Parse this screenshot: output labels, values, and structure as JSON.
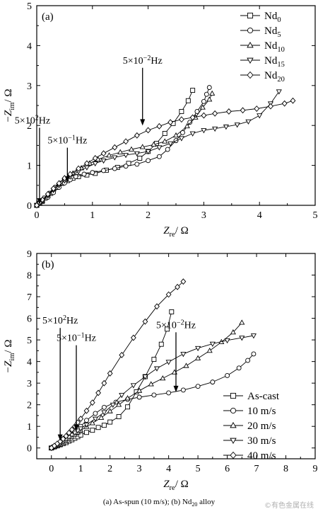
{
  "caption": "(a) As-spun (10 m/s); (b) Nd20 alloy",
  "watermark": "©有色金属在线",
  "chart_data": [
    {
      "type": "line",
      "panel_label": "(a)",
      "xlabel": "Zre/ Ω",
      "ylabel": "−Zim/ Ω",
      "xlim": [
        0,
        5
      ],
      "ylim": [
        0,
        5
      ],
      "xticks": [
        0,
        1,
        2,
        3,
        4,
        5
      ],
      "yticks": [
        0,
        1,
        2,
        3,
        4,
        5
      ],
      "legend": "top-right",
      "series": [
        {
          "name": "Nd0",
          "marker": "square",
          "x": [
            0.0,
            0.05,
            0.1,
            0.15,
            0.25,
            0.35,
            0.45,
            0.55,
            0.65,
            0.75,
            0.9,
            1.05,
            1.25,
            1.45,
            1.65,
            1.85,
            2.0,
            2.15,
            2.3,
            2.45,
            2.6,
            2.72,
            2.8
          ],
          "y": [
            0.0,
            0.05,
            0.1,
            0.18,
            0.3,
            0.45,
            0.55,
            0.62,
            0.68,
            0.72,
            0.76,
            0.8,
            0.88,
            0.95,
            1.05,
            1.18,
            1.35,
            1.55,
            1.8,
            2.05,
            2.35,
            2.62,
            2.88
          ]
        },
        {
          "name": "Nd5",
          "marker": "circle",
          "x": [
            0.0,
            0.05,
            0.1,
            0.2,
            0.3,
            0.4,
            0.5,
            0.6,
            0.7,
            0.85,
            1.0,
            1.2,
            1.4,
            1.6,
            1.8,
            2.0,
            2.2,
            2.35,
            2.5,
            2.62,
            2.75,
            2.88,
            3.0,
            3.05,
            3.1
          ],
          "y": [
            0.0,
            0.05,
            0.1,
            0.2,
            0.32,
            0.45,
            0.56,
            0.64,
            0.72,
            0.78,
            0.82,
            0.87,
            0.92,
            0.98,
            1.03,
            1.12,
            1.22,
            1.4,
            1.62,
            1.82,
            2.08,
            2.35,
            2.6,
            2.78,
            2.95
          ]
        },
        {
          "name": "Nd10",
          "marker": "triangle-up",
          "x": [
            0.0,
            0.05,
            0.1,
            0.2,
            0.3,
            0.4,
            0.5,
            0.65,
            0.8,
            0.95,
            1.1,
            1.3,
            1.5,
            1.7,
            1.9,
            2.1,
            2.3,
            2.5,
            2.7,
            2.85,
            2.98,
            3.1,
            3.15
          ],
          "y": [
            0.0,
            0.06,
            0.12,
            0.25,
            0.4,
            0.55,
            0.68,
            0.8,
            0.93,
            1.05,
            1.15,
            1.25,
            1.33,
            1.4,
            1.46,
            1.52,
            1.6,
            1.75,
            1.98,
            2.2,
            2.45,
            2.65,
            2.8
          ]
        },
        {
          "name": "Nd15",
          "marker": "triangle-down",
          "x": [
            0.0,
            0.05,
            0.1,
            0.2,
            0.3,
            0.4,
            0.5,
            0.6,
            0.75,
            0.9,
            1.05,
            1.2,
            1.4,
            1.6,
            1.8,
            2.0,
            2.2,
            2.4,
            2.6,
            2.8,
            3.0,
            3.2,
            3.4,
            3.6,
            3.8,
            4.0,
            4.2,
            4.35
          ],
          "y": [
            0.0,
            0.06,
            0.12,
            0.24,
            0.38,
            0.5,
            0.62,
            0.72,
            0.85,
            0.95,
            1.05,
            1.12,
            1.2,
            1.26,
            1.3,
            1.35,
            1.45,
            1.55,
            1.68,
            1.8,
            1.88,
            1.92,
            1.97,
            2.02,
            2.1,
            2.25,
            2.55,
            2.85
          ]
        },
        {
          "name": "Nd20",
          "marker": "diamond",
          "x": [
            0.0,
            0.05,
            0.1,
            0.2,
            0.3,
            0.4,
            0.5,
            0.6,
            0.75,
            0.9,
            1.05,
            1.2,
            1.4,
            1.6,
            1.8,
            2.0,
            2.2,
            2.4,
            2.6,
            2.8,
            3.0,
            3.2,
            3.45,
            3.7,
            3.95,
            4.2,
            4.45,
            4.6
          ],
          "y": [
            0.0,
            0.07,
            0.14,
            0.28,
            0.42,
            0.55,
            0.68,
            0.78,
            0.92,
            1.05,
            1.18,
            1.3,
            1.45,
            1.6,
            1.75,
            1.88,
            1.98,
            2.08,
            2.15,
            2.2,
            2.25,
            2.3,
            2.35,
            2.38,
            2.42,
            2.48,
            2.55,
            2.62
          ]
        }
      ],
      "annotations": [
        {
          "text": "5×10−2Hz",
          "x": 1.9,
          "y": 3.55,
          "arrow_to": [
            1.9,
            1.98
          ]
        },
        {
          "text": "5×102Hz",
          "x": 0.05,
          "y": 2.05,
          "arrow_to": [
            0.05,
            0.0
          ]
        },
        {
          "text": "5×10−1Hz",
          "x": 0.55,
          "y": 1.55,
          "arrow_to": [
            0.55,
            0.55
          ]
        }
      ]
    },
    {
      "type": "line",
      "panel_label": "(b)",
      "xlabel": "Zre/ Ω",
      "ylabel": "−Zim/ Ω",
      "xlim": [
        -0.5,
        9
      ],
      "ylim": [
        -0.5,
        9
      ],
      "xticks": [
        0,
        1,
        2,
        3,
        4,
        5,
        6,
        7,
        8,
        9
      ],
      "yticks": [
        0,
        1,
        2,
        3,
        4,
        5,
        6,
        7,
        8,
        9
      ],
      "legend": "bottom-right",
      "series": [
        {
          "name": "As-cast",
          "marker": "square",
          "x": [
            0.0,
            0.1,
            0.2,
            0.3,
            0.4,
            0.5,
            0.6,
            0.7,
            0.8,
            0.9,
            1.0,
            1.2,
            1.4,
            1.6,
            1.8,
            2.0,
            2.3,
            2.6,
            2.9,
            3.2,
            3.5,
            3.75,
            3.95,
            4.1
          ],
          "y": [
            0.0,
            0.05,
            0.1,
            0.15,
            0.2,
            0.25,
            0.32,
            0.38,
            0.45,
            0.52,
            0.6,
            0.72,
            0.82,
            0.95,
            1.05,
            1.2,
            1.45,
            1.9,
            2.6,
            3.3,
            4.1,
            4.8,
            5.5,
            6.3
          ]
        },
        {
          "name": "10 m/s",
          "marker": "circle",
          "x": [
            0.0,
            0.1,
            0.2,
            0.3,
            0.4,
            0.5,
            0.6,
            0.7,
            0.8,
            0.9,
            1.0,
            1.2,
            1.5,
            1.8,
            2.2,
            2.6,
            3.0,
            3.5,
            4.0,
            4.5,
            5.0,
            5.5,
            6.0,
            6.4,
            6.7,
            6.9
          ],
          "y": [
            0.0,
            0.05,
            0.1,
            0.18,
            0.28,
            0.38,
            0.5,
            0.62,
            0.75,
            0.88,
            1.0,
            1.28,
            1.6,
            1.88,
            2.12,
            2.25,
            2.35,
            2.45,
            2.55,
            2.68,
            2.85,
            3.05,
            3.35,
            3.7,
            4.05,
            4.35
          ]
        },
        {
          "name": "20 m/s",
          "marker": "triangle-up",
          "x": [
            0.0,
            0.1,
            0.2,
            0.3,
            0.4,
            0.5,
            0.6,
            0.7,
            0.8,
            0.9,
            1.0,
            1.2,
            1.4,
            1.7,
            2.0,
            2.3,
            2.6,
            3.0,
            3.4,
            3.8,
            4.2,
            4.6,
            5.0,
            5.4,
            5.8,
            6.2,
            6.5
          ],
          "y": [
            0.0,
            0.05,
            0.1,
            0.16,
            0.24,
            0.32,
            0.42,
            0.52,
            0.62,
            0.72,
            0.82,
            0.98,
            1.15,
            1.4,
            1.7,
            2.0,
            2.3,
            2.65,
            2.95,
            3.22,
            3.5,
            3.8,
            4.15,
            4.5,
            4.9,
            5.35,
            5.8
          ]
        },
        {
          "name": "30 m/s",
          "marker": "triangle-down",
          "x": [
            0.0,
            0.1,
            0.2,
            0.3,
            0.4,
            0.5,
            0.6,
            0.7,
            0.8,
            0.9,
            1.0,
            1.2,
            1.5,
            1.8,
            2.1,
            2.4,
            2.8,
            3.2,
            3.6,
            4.0,
            4.5,
            5.0,
            5.5,
            6.0,
            6.5,
            6.9
          ],
          "y": [
            0.0,
            0.06,
            0.12,
            0.2,
            0.3,
            0.4,
            0.5,
            0.6,
            0.7,
            0.8,
            0.9,
            1.08,
            1.35,
            1.65,
            2.0,
            2.45,
            2.9,
            3.3,
            3.68,
            3.98,
            4.35,
            4.62,
            4.82,
            4.98,
            5.1,
            5.2
          ]
        },
        {
          "name": "40 m/s",
          "marker": "diamond",
          "x": [
            0.0,
            0.1,
            0.2,
            0.3,
            0.4,
            0.5,
            0.6,
            0.7,
            0.8,
            0.9,
            1.0,
            1.2,
            1.4,
            1.6,
            1.8,
            2.0,
            2.4,
            2.8,
            3.2,
            3.6,
            4.0,
            4.3,
            4.5
          ],
          "y": [
            0.0,
            0.1,
            0.2,
            0.3,
            0.42,
            0.55,
            0.7,
            0.85,
            1.0,
            1.18,
            1.35,
            1.72,
            2.1,
            2.55,
            3.0,
            3.45,
            4.3,
            5.1,
            5.85,
            6.55,
            7.1,
            7.45,
            7.7
          ]
        }
      ],
      "annotations": [
        {
          "text": "5×102Hz",
          "x": 0.3,
          "y": 5.75,
          "arrow_to": [
            0.3,
            0.3
          ]
        },
        {
          "text": "5×10−1Hz",
          "x": 0.85,
          "y": 4.95,
          "arrow_to": [
            0.85,
            0.75
          ]
        },
        {
          "text": "5×10−2Hz",
          "x": 4.25,
          "y": 5.55,
          "arrow_to": [
            4.25,
            2.55
          ]
        }
      ]
    }
  ]
}
